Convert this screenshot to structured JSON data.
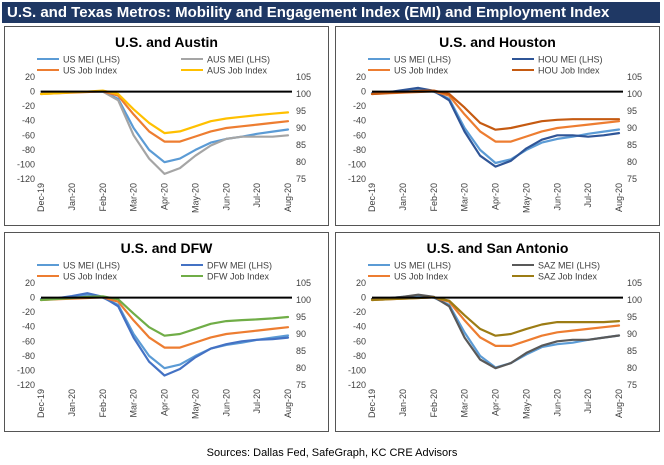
{
  "title": "U.S. and Texas Metros: Mobility and Engagement Index (EMI) and Employment Index",
  "source": "Sources: Dallas Fed, SafeGraph, KC CRE Advisors",
  "chart_data": [
    {
      "type": "line",
      "title": "U.S. and Austin",
      "categories": [
        "Dec-19",
        "Jan-20",
        "Feb-20",
        "Mar-20",
        "Apr-20",
        "May-20",
        "Jun-20",
        "Jul-20",
        "Aug-20"
      ],
      "x": [
        0,
        0.5,
        1,
        1.5,
        2,
        2.5,
        3,
        3.5,
        4,
        4.5,
        5,
        5.5,
        6,
        6.5,
        7,
        7.5,
        8
      ],
      "ylim_left": [
        -120,
        20
      ],
      "yticks_left": [
        20,
        0,
        -20,
        -40,
        -60,
        -80,
        -100,
        -120
      ],
      "ylim_right": [
        75,
        105
      ],
      "yticks_right": [
        105,
        100,
        95,
        90,
        85,
        80,
        75
      ],
      "series": [
        {
          "name": "US MEI (LHS)",
          "axis": "left",
          "color": "#5b9bd5",
          "values": [
            0,
            0,
            0,
            0,
            0,
            -10,
            -50,
            -80,
            -97,
            -92,
            -80,
            -70,
            -65,
            -62,
            -58,
            -55,
            -52
          ]
        },
        {
          "name": "AUS MEI (LHS)",
          "axis": "left",
          "color": "#a5a5a5",
          "values": [
            0,
            0,
            0,
            0,
            0,
            -12,
            -60,
            -92,
            -113,
            -105,
            -88,
            -74,
            -65,
            -62,
            -62,
            -62,
            -60
          ]
        },
        {
          "name": "US Job Index",
          "axis": "right",
          "color": "#ed7d31",
          "values": [
            100,
            100.2,
            100.4,
            100.6,
            100.8,
            99.5,
            94,
            89,
            86,
            86,
            87.5,
            89,
            90,
            90.5,
            91,
            91.5,
            92
          ]
        },
        {
          "name": "AUS Job Index",
          "axis": "right",
          "color": "#ffc000",
          "values": [
            100,
            100.2,
            100.5,
            100.7,
            101,
            100,
            95.5,
            91.5,
            88.5,
            89,
            90.5,
            92,
            92.8,
            93.3,
            93.8,
            94.2,
            94.6
          ]
        }
      ]
    },
    {
      "type": "line",
      "title": "U.S. and Houston",
      "categories": [
        "Dec-19",
        "Jan-20",
        "Feb-20",
        "Mar-20",
        "Apr-20",
        "May-20",
        "Jun-20",
        "Jul-20",
        "Aug-20"
      ],
      "x": [
        0,
        0.5,
        1,
        1.5,
        2,
        2.5,
        3,
        3.5,
        4,
        4.5,
        5,
        5.5,
        6,
        6.5,
        7,
        7.5,
        8
      ],
      "ylim_left": [
        -120,
        20
      ],
      "yticks_left": [
        20,
        0,
        -20,
        -40,
        -60,
        -80,
        -100,
        -120
      ],
      "ylim_right": [
        75,
        105
      ],
      "yticks_right": [
        105,
        100,
        95,
        90,
        85,
        80,
        75
      ],
      "series": [
        {
          "name": "US MEI (LHS)",
          "axis": "left",
          "color": "#5b9bd5",
          "values": [
            -2,
            -1,
            1,
            3,
            0,
            -10,
            -50,
            -80,
            -98,
            -93,
            -80,
            -70,
            -65,
            -62,
            -58,
            -55,
            -52
          ]
        },
        {
          "name": "HOU MEI (LHS)",
          "axis": "left",
          "color": "#2f5597",
          "values": [
            -3,
            -1,
            2,
            5,
            1,
            -12,
            -55,
            -88,
            -103,
            -95,
            -78,
            -66,
            -60,
            -60,
            -62,
            -60,
            -57
          ]
        },
        {
          "name": "US Job Index",
          "axis": "right",
          "color": "#ed7d31",
          "values": [
            100,
            100.2,
            100.4,
            100.6,
            100.8,
            99.5,
            94,
            89,
            86,
            86,
            87.5,
            89,
            90,
            90.5,
            91,
            91.5,
            92
          ]
        },
        {
          "name": "HOU Job Index",
          "axis": "right",
          "color": "#c55a11",
          "values": [
            100,
            100.3,
            100.6,
            100.9,
            101,
            100,
            96,
            91.5,
            89.5,
            90,
            91,
            92,
            92.4,
            92.6,
            92.6,
            92.6,
            92.6
          ]
        }
      ]
    },
    {
      "type": "line",
      "title": "U.S. and DFW",
      "categories": [
        "Dec-19",
        "Jan-20",
        "Feb-20",
        "Mar-20",
        "Apr-20",
        "May-20",
        "Jun-20",
        "Jul-20",
        "Aug-20"
      ],
      "x": [
        0,
        0.5,
        1,
        1.5,
        2,
        2.5,
        3,
        3.5,
        4,
        4.5,
        5,
        5.5,
        6,
        6.5,
        7,
        7.5,
        8
      ],
      "ylim_left": [
        -120,
        20
      ],
      "yticks_left": [
        20,
        0,
        -20,
        -40,
        -60,
        -80,
        -100,
        -120
      ],
      "ylim_right": [
        75,
        105
      ],
      "yticks_right": [
        105,
        100,
        95,
        90,
        85,
        80,
        75
      ],
      "series": [
        {
          "name": "US MEI (LHS)",
          "axis": "left",
          "color": "#5b9bd5",
          "values": [
            -2,
            -1,
            1,
            4,
            0,
            -10,
            -50,
            -80,
            -97,
            -92,
            -80,
            -70,
            -65,
            -62,
            -58,
            -55,
            -52
          ]
        },
        {
          "name": "DFW MEI (LHS)",
          "axis": "left",
          "color": "#4472c4",
          "values": [
            -3,
            -1,
            2,
            6,
            1,
            -12,
            -55,
            -88,
            -107,
            -98,
            -82,
            -70,
            -64,
            -60,
            -58,
            -57,
            -55
          ]
        },
        {
          "name": "US Job Index",
          "axis": "right",
          "color": "#ed7d31",
          "values": [
            100,
            100.2,
            100.4,
            100.6,
            100.8,
            99.5,
            94,
            89,
            86,
            86,
            87.5,
            89,
            90,
            90.5,
            91,
            91.5,
            92
          ]
        },
        {
          "name": "DFW Job Index",
          "axis": "right",
          "color": "#70ad47",
          "values": [
            100,
            100.3,
            100.6,
            100.9,
            101.1,
            100.2,
            96,
            92,
            89.5,
            90,
            91.5,
            93,
            93.8,
            94.1,
            94.3,
            94.6,
            95
          ]
        }
      ]
    },
    {
      "type": "line",
      "title": "U.S. and San Antonio",
      "categories": [
        "Dec-19",
        "Jan-20",
        "Feb-20",
        "Mar-20",
        "Apr-20",
        "May-20",
        "Jun-20",
        "Jul-20",
        "Aug-20"
      ],
      "x": [
        0,
        0.5,
        1,
        1.5,
        2,
        2.5,
        3,
        3.5,
        4,
        4.5,
        5,
        5.5,
        6,
        6.5,
        7,
        7.5,
        8
      ],
      "ylim_left": [
        -120,
        20
      ],
      "yticks_left": [
        20,
        0,
        -20,
        -40,
        -60,
        -80,
        -100,
        -120
      ],
      "ylim_right": [
        75,
        105
      ],
      "yticks_right": [
        105,
        100,
        95,
        90,
        85,
        80,
        75
      ],
      "series": [
        {
          "name": "US MEI (LHS)",
          "axis": "left",
          "color": "#5b9bd5",
          "values": [
            -2,
            -1,
            1,
            3,
            0,
            -10,
            -48,
            -80,
            -96,
            -90,
            -78,
            -68,
            -64,
            -62,
            -58,
            -55,
            -52
          ]
        },
        {
          "name": "SAZ MEI (LHS)",
          "axis": "left",
          "color": "#595959",
          "values": [
            -2,
            -1,
            1,
            4,
            1,
            -12,
            -55,
            -85,
            -97,
            -90,
            -76,
            -66,
            -60,
            -58,
            -58,
            -55,
            -52
          ]
        },
        {
          "name": "US Job Index",
          "axis": "right",
          "color": "#ed7d31",
          "values": [
            100,
            100.2,
            100.4,
            100.6,
            100.8,
            99.5,
            94,
            89,
            86.5,
            86.5,
            88,
            89.5,
            90.5,
            91,
            91.5,
            92,
            92.5
          ]
        },
        {
          "name": "SAZ Job Index",
          "axis": "right",
          "color": "#9c7c14",
          "values": [
            100,
            100.2,
            100.4,
            100.6,
            100.8,
            99.8,
            95.5,
            91.5,
            89.5,
            90,
            91.5,
            92.8,
            93.5,
            93.5,
            93.5,
            93.5,
            93.8
          ]
        }
      ]
    }
  ]
}
